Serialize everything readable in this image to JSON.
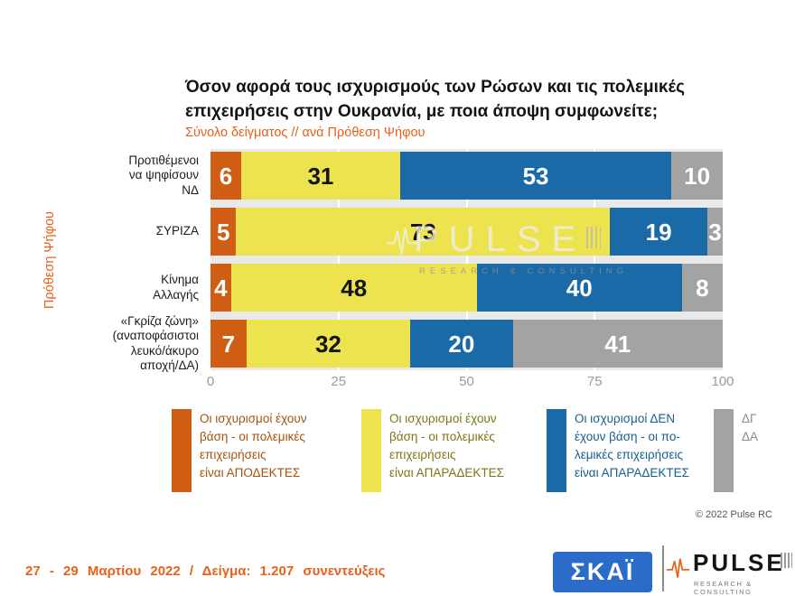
{
  "title": {
    "line1": "Όσον αφορά τους ισχυρισμούς των Ρώσων και τις πολεμικές",
    "line2": "επιχειρήσεις στην Ουκρανία, με ποια άποψη συμφωνείτε;",
    "subtitle": "Σύνολο δείγματος // ανά Πρόθεση Ψήφου"
  },
  "y_axis": {
    "label": "Πρόθεση Ψήφου"
  },
  "chart_data": {
    "type": "bar",
    "variant": "horizontal-stacked",
    "unit": "percent",
    "plot_bg": "#e9e9e9",
    "categories": [
      "Προτιθέμενοι να ψηφίσουν ΝΔ",
      "ΣΥΡΙΖΑ",
      "Κίνημα Αλλαγής",
      "«Γκρίζα ζώνη» (αναποφάσιστοι λευκό/άκυρο αποχή/ΔΑ)"
    ],
    "category_label_lines": [
      [
        "Προτιθέμενοι",
        "να ψηφίσουν",
        "ΝΔ"
      ],
      [
        "ΣΥΡΙΖΑ"
      ],
      [
        "Κίνημα",
        "Αλλαγής"
      ],
      [
        "«Γκρίζα ζώνη»",
        "(αναποφάσιστοι",
        "λευκό/άκυρο",
        "αποχή/ΔΑ)"
      ]
    ],
    "series": [
      {
        "name": "Οι ισχυρισμοί έχουν βάση - οι πολεμικές επιχειρήσεις είναι ΑΠΟΔΕΚΤΕΣ",
        "color": "#cf5e14",
        "label_color": "#ffffff",
        "values": [
          6,
          5,
          4,
          7
        ]
      },
      {
        "name": "Οι ισχυρισμοί έχουν βάση - οι πολεμικές επιχειρήσεις είναι ΑΠΑΡΑΔΕΚΤΕΣ",
        "color": "#ece34f",
        "label_color": "#141414",
        "values": [
          31,
          73,
          48,
          32
        ]
      },
      {
        "name": "Οι ισχυρισμοί ΔΕΝ έχουν βάση - οι πολεμικές επιχειρήσεις είναι ΑΠΑΡΑΔΕΚΤΕΣ",
        "color": "#1b6aa8",
        "label_color": "#ffffff",
        "values": [
          53,
          19,
          40,
          20
        ]
      },
      {
        "name": "ΔΓ/ΔΑ",
        "color": "#a3a3a3",
        "label_color": "#ffffff",
        "values": [
          10,
          3,
          8,
          41
        ]
      }
    ],
    "x_ticks": [
      0,
      25,
      50,
      75,
      100
    ],
    "xlim": [
      0,
      100
    ],
    "grid": "vertical",
    "legend_position": "bottom"
  },
  "legend": {
    "items": [
      {
        "color": "#cf5e14",
        "text_color": "#a4520e",
        "lines": [
          "Οι ισχυρισμοί έχουν",
          "βάση - οι πολεμικές",
          "επιχειρήσεις",
          "είναι ΑΠΟΔΕΚΤΕΣ"
        ]
      },
      {
        "color": "#ece34f",
        "text_color": "#7e7514",
        "lines": [
          "Οι ισχυρισμοί έχουν",
          "βάση - οι πολεμικές",
          "επιχειρήσεις",
          "είναι ΑΠΑΡΑΔΕΚΤΕΣ"
        ]
      },
      {
        "color": "#1b6aa8",
        "text_color": "#14608f",
        "lines": [
          "Οι ισχυρισμοί ΔΕΝ",
          "έχουν βάση - οι πο-",
          "λεμικές επιχειρήσεις",
          "είναι ΑΠΑΡΑΔΕΚΤΕΣ"
        ]
      },
      {
        "color": "#a3a3a3",
        "text_color": "#8a8a8a",
        "lines": [
          "ΔΓ",
          "ΔΑ"
        ]
      }
    ]
  },
  "watermark": {
    "word": "PULSE",
    "tagline": "RESEARCH & CONSULTING"
  },
  "copyright": "© 2022 Pulse RC",
  "footer": {
    "note": "27 - 29 Μαρτίου 2022 / Δείγμα: 1.207 συνεντεύξεις"
  },
  "logos": {
    "skai": {
      "text": "ΣΚΑΪ",
      "bg_color": "#2b6cca"
    },
    "pulse": {
      "word": "PULSE",
      "tagline": "RESEARCH & CONSULTING",
      "accent_color": "#e8601a"
    }
  },
  "accent_colors": {
    "orange_text": "#e8601a"
  }
}
